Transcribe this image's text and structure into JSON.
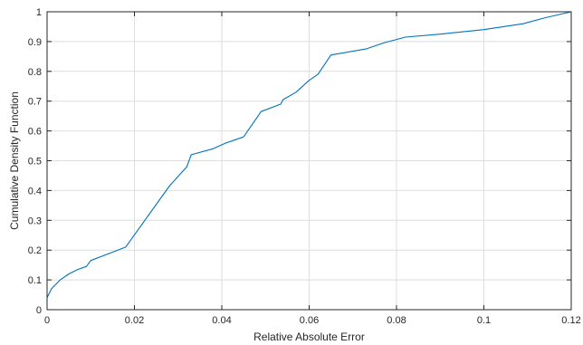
{
  "chart_data": {
    "type": "line",
    "title": "",
    "xlabel": "Relative Absolute Error",
    "ylabel": "Cumulative Density Function",
    "xlim": [
      0,
      0.12
    ],
    "ylim": [
      0,
      1
    ],
    "x_ticks": [
      0,
      0.02,
      0.04,
      0.06,
      0.08,
      0.1,
      0.12
    ],
    "x_tick_labels": [
      "0",
      "0.02",
      "0.04",
      "0.06",
      "0.08",
      "0.1",
      "0.12"
    ],
    "y_ticks": [
      0,
      0.1,
      0.2,
      0.3,
      0.4,
      0.5,
      0.6,
      0.7,
      0.8,
      0.9,
      1
    ],
    "y_tick_labels": [
      "0",
      "0.1",
      "0.2",
      "0.3",
      "0.4",
      "0.5",
      "0.6",
      "0.7",
      "0.8",
      "0.9",
      "1"
    ],
    "grid": true,
    "legend": "none",
    "series": [
      {
        "color": "#0072BD",
        "x": [
          0,
          0.001,
          0.003,
          0.005,
          0.007,
          0.009,
          0.01,
          0.018,
          0.028,
          0.032,
          0.033,
          0.038,
          0.041,
          0.045,
          0.049,
          0.0535,
          0.054,
          0.057,
          0.06,
          0.062,
          0.065,
          0.073,
          0.077,
          0.082,
          0.09,
          0.1,
          0.109,
          0.114,
          0.12
        ],
        "y": [
          0.04,
          0.07,
          0.1,
          0.12,
          0.135,
          0.145,
          0.165,
          0.21,
          0.415,
          0.48,
          0.52,
          0.54,
          0.56,
          0.58,
          0.665,
          0.69,
          0.705,
          0.73,
          0.77,
          0.79,
          0.855,
          0.875,
          0.895,
          0.915,
          0.925,
          0.94,
          0.96,
          0.98,
          1.0
        ]
      }
    ]
  }
}
